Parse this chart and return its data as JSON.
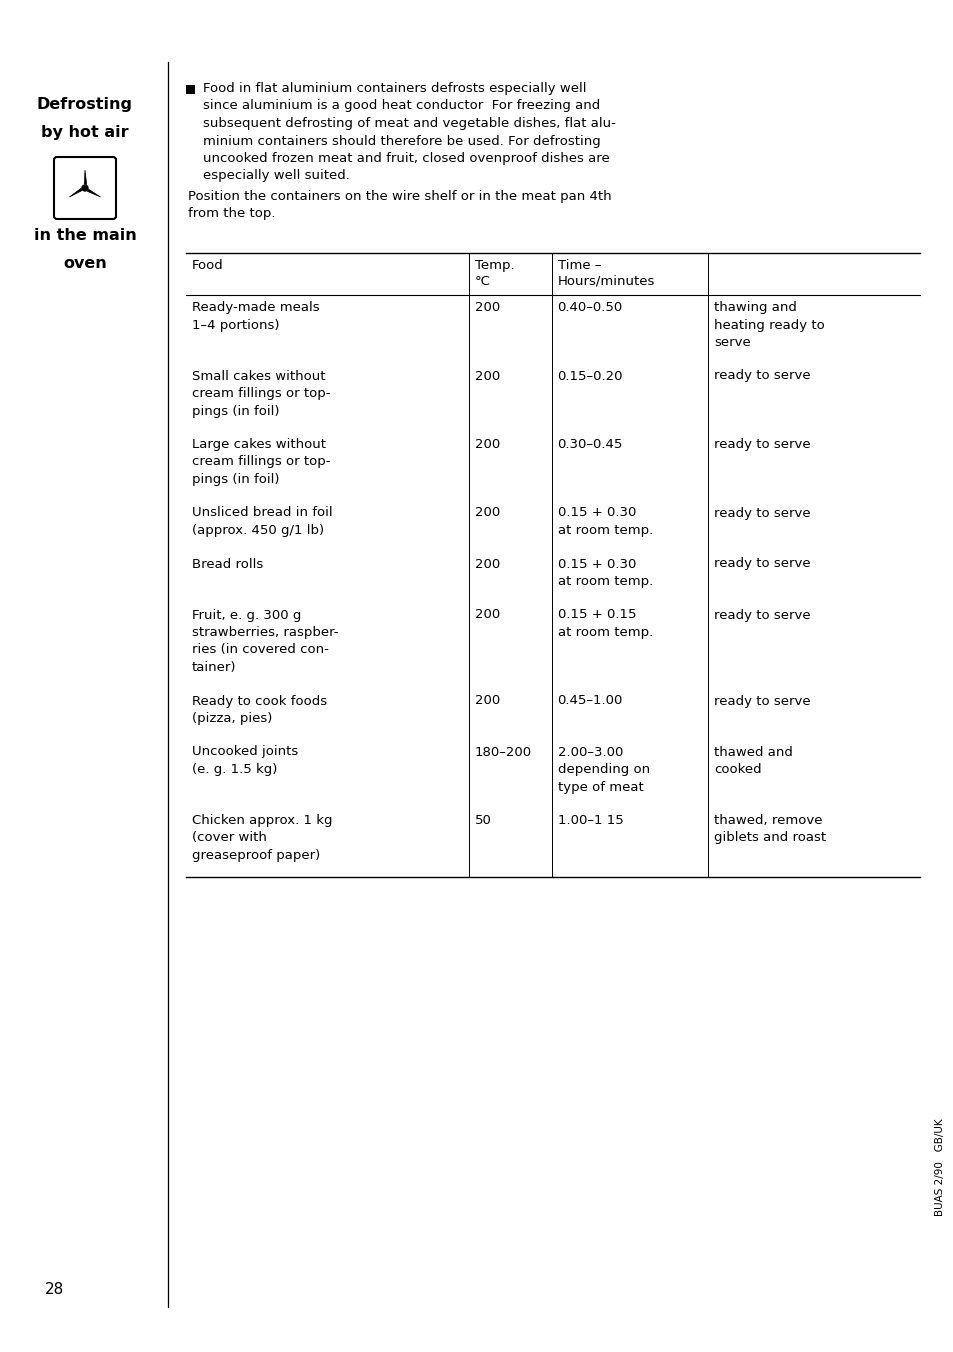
{
  "bg_color": "#ffffff",
  "page_number": "28",
  "intro_lines": [
    "Food in flat aluminium containers defrosts especially well",
    "since aluminium is a good heat conductor  For freezing and",
    "subsequent defrosting of meat and vegetable dishes, flat alu-",
    "minium containers should therefore be used. For defrosting",
    "uncooked frozen meat and fruit, closed ovenproof dishes are",
    "especially well suited."
  ],
  "extra_lines": [
    "Position the containers on the wire shelf or in the meat pan 4th",
    "from the top."
  ],
  "table_headers": [
    "Food",
    "Temp.\n°C",
    "Time –\nHours/minutes",
    ""
  ],
  "table_rows": [
    {
      "food": "Ready-made meals\n1–4 portions)",
      "temp": "200",
      "time": "0.40–0.50",
      "notes": "thawing and\nheating ready to\nserve"
    },
    {
      "food": "Small cakes without\ncream fillings or top-\npings (in foil)",
      "temp": "200",
      "time": "0.15–0.20",
      "notes": "ready to serve"
    },
    {
      "food": "Large cakes without\ncream fillings or top-\npings (in foil)",
      "temp": "200",
      "time": "0.30–0.45",
      "notes": "ready to serve"
    },
    {
      "food": "Unsliced bread in foil\n(approx. 450 g/1 lb)",
      "temp": "200",
      "time": "0.15 + 0.30\nat room temp.",
      "notes": "ready to serve"
    },
    {
      "food": "Bread rolls",
      "temp": "200",
      "time": "0.15 + 0.30\nat room temp.",
      "notes": "ready to serve"
    },
    {
      "food": "Fruit, e. g. 300 g\nstrawberries, raspber-\nries (in covered con-\ntainer)",
      "temp": "200",
      "time": "0.15 + 0.15\nat room temp.",
      "notes": "ready to serve"
    },
    {
      "food": "Ready to cook foods\n(pizza, pies)",
      "temp": "200",
      "time": "0.45–1.00",
      "notes": "ready to serve"
    },
    {
      "food": "Uncooked joints\n(e. g. 1.5 kg)",
      "temp": "180–200",
      "time": "2.00–3.00\ndepending on\ntype of meat",
      "notes": "thawed and\ncooked"
    },
    {
      "food": "Chicken approx. 1 kg\n(cover with\ngreaseproof paper)",
      "temp": "50",
      "time": "1.00–1 15",
      "notes": "thawed, remove\ngiblets and roast"
    }
  ],
  "watermark": "BUAS 2/90   GB/UK",
  "font_size_body": 9.5,
  "font_size_sidebar_bold": 11.5,
  "font_size_page": 11.0,
  "font_size_watermark": 7.5
}
